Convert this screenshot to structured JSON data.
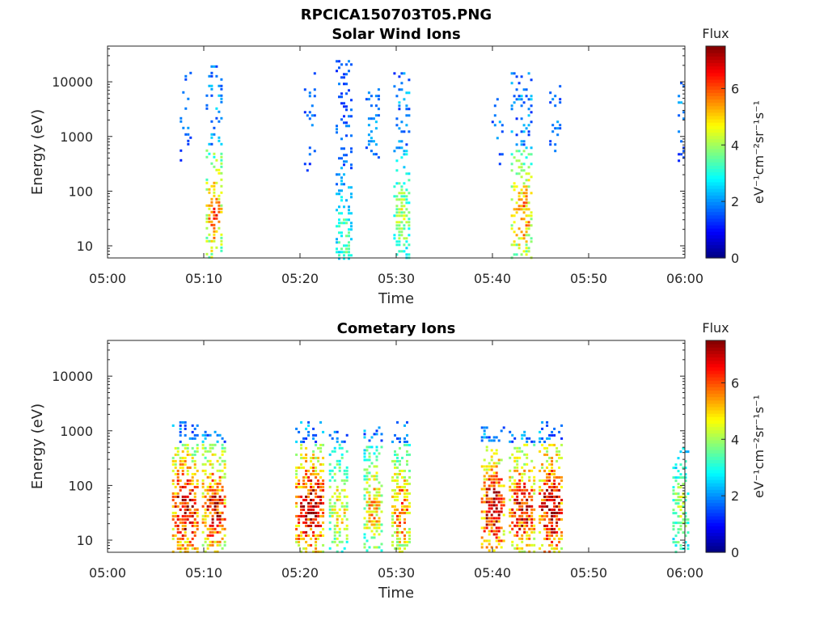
{
  "figure_title": "RPCICA150703T05.PNG",
  "chart_data": [
    {
      "type": "heatmap",
      "title": "Solar Wind Ions",
      "xlabel": "Time",
      "ylabel": "Energy (eV)",
      "x_ticks": [
        "05:00",
        "05:10",
        "05:20",
        "05:30",
        "05:40",
        "05:50",
        "06:00"
      ],
      "x_range": [
        "05:00",
        "06:00"
      ],
      "y_scale": "log",
      "y_ticks": [
        10,
        100,
        1000,
        10000
      ],
      "y_tick_labels": [
        "10",
        "100",
        "1000",
        "10000"
      ],
      "y_range": [
        6,
        45000
      ],
      "colorbar": {
        "label": "Flux",
        "unit_label": "eV⁻¹cm⁻²sr⁻¹s⁻¹",
        "range": [
          0,
          7.5
        ],
        "ticks": [
          0,
          2,
          4,
          6
        ],
        "tick_labels": [
          "0",
          "2",
          "4",
          "6"
        ],
        "colormap": "jet"
      },
      "bursts": [
        {
          "center": "05:08",
          "width_min": 1.5,
          "e_min": 300,
          "e_max": 20000,
          "peak_e": 3000,
          "peak_flux": 2.0,
          "density": 0.18
        },
        {
          "center": "05:11",
          "width_min": 1.6,
          "e_min": 6,
          "e_max": 20000,
          "peak_e": 40,
          "peak_flux": 5.8,
          "density": 0.55
        },
        {
          "center": "05:21",
          "width_min": 1.2,
          "e_min": 200,
          "e_max": 15000,
          "peak_e": 2000,
          "peak_flux": 2.0,
          "density": 0.18
        },
        {
          "center": "05:24.5",
          "width_min": 1.6,
          "e_min": 6,
          "e_max": 25000,
          "peak_e": 15,
          "peak_flux": 3.4,
          "density": 0.6
        },
        {
          "center": "05:27.5",
          "width_min": 1.4,
          "e_min": 300,
          "e_max": 10000,
          "peak_e": 2000,
          "peak_flux": 2.2,
          "density": 0.22
        },
        {
          "center": "05:30.5",
          "width_min": 1.6,
          "e_min": 6,
          "e_max": 15000,
          "peak_e": 40,
          "peak_flux": 4.2,
          "density": 0.55
        },
        {
          "center": "05:40.5",
          "width_min": 1.2,
          "e_min": 300,
          "e_max": 15000,
          "peak_e": 2000,
          "peak_flux": 2.0,
          "density": 0.2
        },
        {
          "center": "05:43",
          "width_min": 2.2,
          "e_min": 6,
          "e_max": 15000,
          "peak_e": 40,
          "peak_flux": 5.5,
          "density": 0.6
        },
        {
          "center": "05:46.5",
          "width_min": 1.2,
          "e_min": 500,
          "e_max": 10000,
          "peak_e": 2000,
          "peak_flux": 2.0,
          "density": 0.18
        },
        {
          "center": "05:59.5",
          "width_min": 1.0,
          "e_min": 300,
          "e_max": 15000,
          "peak_e": 3000,
          "peak_flux": 2.0,
          "density": 0.22
        }
      ]
    },
    {
      "type": "heatmap",
      "title": "Cometary Ions",
      "xlabel": "Time",
      "ylabel": "Energy (eV)",
      "x_ticks": [
        "05:00",
        "05:10",
        "05:20",
        "05:30",
        "05:40",
        "05:50",
        "06:00"
      ],
      "x_range": [
        "05:00",
        "06:00"
      ],
      "y_scale": "log",
      "y_ticks": [
        10,
        100,
        1000,
        10000
      ],
      "y_tick_labels": [
        "10",
        "100",
        "1000",
        "10000"
      ],
      "y_range": [
        6,
        45000
      ],
      "colorbar": {
        "label": "Flux",
        "unit_label": "eV⁻¹cm⁻²sr⁻¹s⁻¹",
        "range": [
          0,
          7.5
        ],
        "ticks": [
          0,
          2,
          4,
          6
        ],
        "tick_labels": [
          "0",
          "2",
          "4",
          "6"
        ],
        "colormap": "jet"
      },
      "bursts": [
        {
          "center": "05:08",
          "width_min": 2.6,
          "e_min": 6,
          "e_max": 1500,
          "peak_e": 40,
          "peak_flux": 7.0,
          "density": 0.75
        },
        {
          "center": "05:11",
          "width_min": 2.4,
          "e_min": 6,
          "e_max": 1000,
          "peak_e": 40,
          "peak_flux": 6.6,
          "density": 0.72
        },
        {
          "center": "05:21",
          "width_min": 3.0,
          "e_min": 6,
          "e_max": 1500,
          "peak_e": 40,
          "peak_flux": 7.0,
          "density": 0.72
        },
        {
          "center": "05:24",
          "width_min": 2.0,
          "e_min": 6,
          "e_max": 1000,
          "peak_e": 40,
          "peak_flux": 4.8,
          "density": 0.6
        },
        {
          "center": "05:27.5",
          "width_min": 1.8,
          "e_min": 6,
          "e_max": 1200,
          "peak_e": 40,
          "peak_flux": 5.2,
          "density": 0.62
        },
        {
          "center": "05:30.5",
          "width_min": 2.0,
          "e_min": 6,
          "e_max": 1500,
          "peak_e": 40,
          "peak_flux": 5.8,
          "density": 0.65
        },
        {
          "center": "05:40",
          "width_min": 2.4,
          "e_min": 6,
          "e_max": 1200,
          "peak_e": 40,
          "peak_flux": 7.0,
          "density": 0.72
        },
        {
          "center": "05:43",
          "width_min": 2.6,
          "e_min": 6,
          "e_max": 1000,
          "peak_e": 40,
          "peak_flux": 6.6,
          "density": 0.72
        },
        {
          "center": "05:46",
          "width_min": 2.4,
          "e_min": 6,
          "e_max": 1500,
          "peak_e": 40,
          "peak_flux": 7.2,
          "density": 0.75
        },
        {
          "center": "05:59.5",
          "width_min": 1.6,
          "e_min": 6,
          "e_max": 500,
          "peak_e": 40,
          "peak_flux": 4.2,
          "density": 0.6
        }
      ]
    }
  ]
}
